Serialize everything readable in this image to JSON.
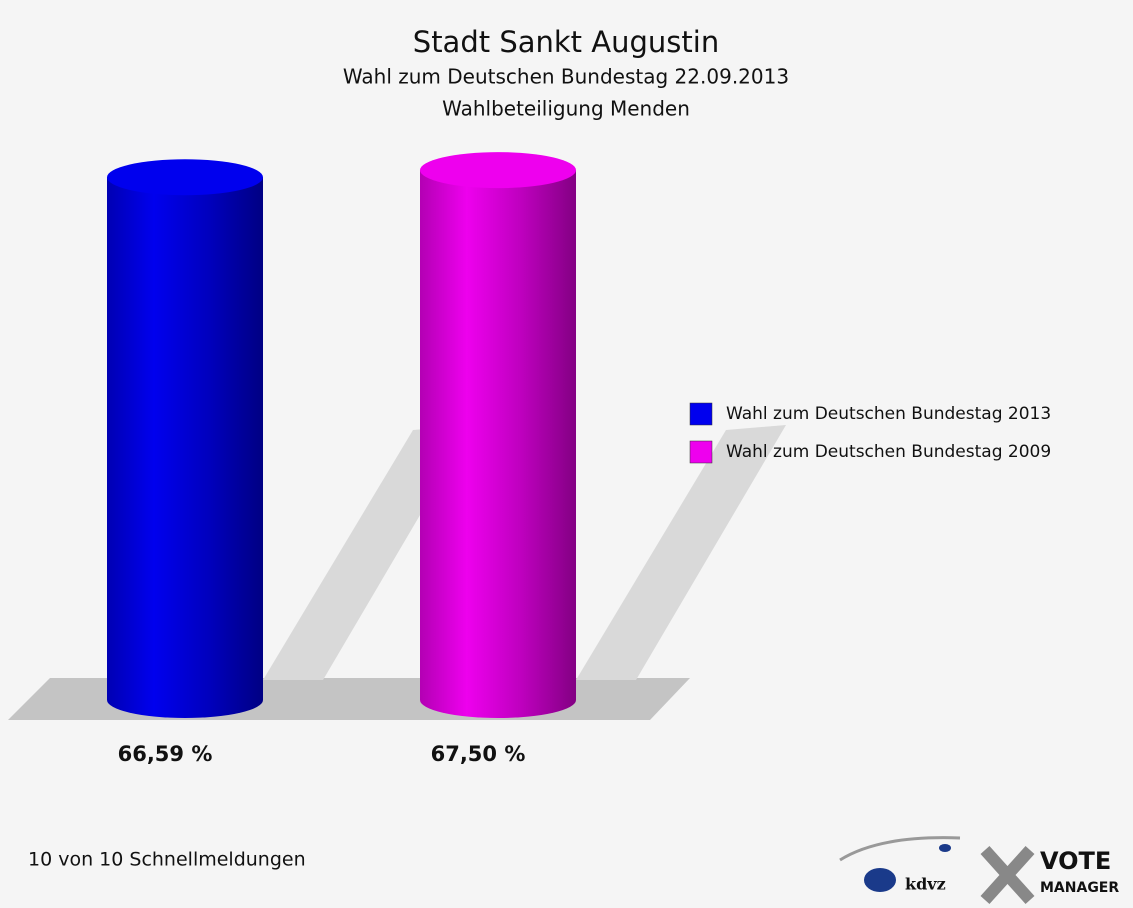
{
  "chart_data": {
    "type": "bar3d",
    "title": "Stadt Sankt Augustin",
    "subtitles": [
      "Wahl zum Deutschen Bundestag 22.09.2013",
      "Wahlbeteiligung Menden"
    ],
    "series": [
      {
        "name": "Wahl zum Deutschen Bundestag 2013",
        "color": "#0000ee",
        "values": [
          66.59
        ],
        "value_labels": [
          "66,59 %"
        ]
      },
      {
        "name": "Wahl zum Deutschen Bundestag 2009",
        "color": "#ee00ee",
        "values": [
          67.5
        ],
        "value_labels": [
          "67,50 %"
        ]
      }
    ],
    "legend": "right",
    "footnote": "10 von 10 Schnellmeldungen"
  },
  "logo": {
    "kdvz": "kdvz",
    "vote": "VOTE",
    "manager": "MANAGER"
  }
}
